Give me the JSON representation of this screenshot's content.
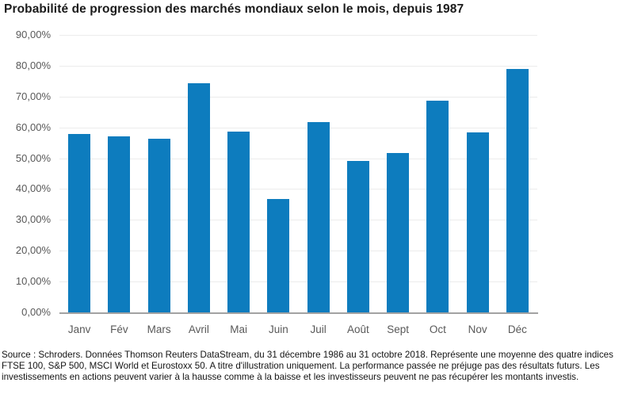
{
  "title": "Probabilité de progression des marchés mondiaux selon le mois, depuis 1987",
  "chart_data": {
    "type": "bar",
    "title": "Probabilité de progression des marchés mondiaux selon le mois, depuis 1987",
    "categories": [
      "Janv",
      "Fév",
      "Mars",
      "Avril",
      "Mai",
      "Juin",
      "Juil",
      "Août",
      "Sept",
      "Oct",
      "Nov",
      "Déc"
    ],
    "values": [
      57.9,
      57.0,
      56.3,
      74.4,
      58.6,
      36.7,
      61.7,
      49.2,
      51.6,
      68.6,
      58.3,
      79.0
    ],
    "xlabel": "",
    "ylabel": "",
    "ylim": [
      0,
      90
    ],
    "ytick_step": 10,
    "ytick_labels": [
      "0,00%",
      "10,00%",
      "20,00%",
      "30,00%",
      "40,00%",
      "50,00%",
      "60,00%",
      "70,00%",
      "80,00%",
      "90,00%"
    ],
    "grid": true,
    "legend": "none",
    "bar_color": "#0d7cbe"
  },
  "colors": {
    "bar": "#0d7cbe",
    "gridline": "#ececec",
    "axis_line": "#a2a2a2",
    "tick_label": "#595959",
    "title_text": "#1b1b1b",
    "footer_text": "#141414"
  },
  "footer": "Source : Schroders. Données Thomson Reuters DataStream, du 31 décembre 1986 au 31 octobre 2018. Représente une moyenne des quatre indices FTSE 100, S&P 500, MSCI World et Eurostoxx 50. A titre d'illustration uniquement. La performance passée ne préjuge pas des résultats futurs. Les investissements en actions peuvent varier à la hausse comme à la baisse et les investisseurs peuvent ne pas récupérer les montants investis."
}
